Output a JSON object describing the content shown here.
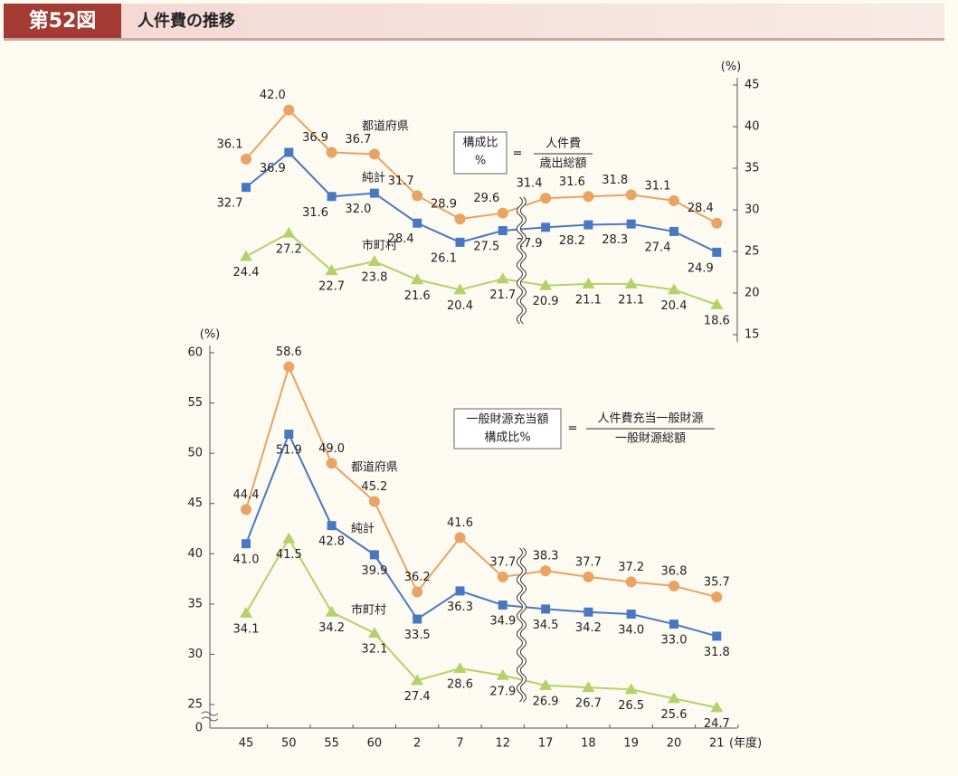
{
  "header": {
    "figure": "第52図",
    "title": "人件費の推移"
  },
  "chart_data": [
    {
      "type": "line",
      "y_unit": "(%)",
      "ylim": [
        15,
        45
      ],
      "yticks": [
        15,
        20,
        25,
        30,
        35,
        40,
        45
      ],
      "formula": {
        "lhs": [
          "構成比",
          "%"
        ],
        "equals": "=",
        "numerator": "人件費",
        "denominator": "歳出総額"
      },
      "series": [
        {
          "name": "都道府県",
          "color": "#e9a362",
          "marker": "circle",
          "values": [
            36.1,
            42.0,
            36.9,
            36.7,
            31.7,
            28.9,
            29.6,
            31.4,
            31.6,
            31.8,
            31.1,
            28.4
          ],
          "value_labels": [
            "36.1",
            "42.0",
            "36.9",
            "36.7",
            "31.7",
            "28.9",
            "29.6",
            "31.4",
            "31.6",
            "31.8",
            "31.1",
            "28.4"
          ]
        },
        {
          "name": "純計",
          "color": "#4a78c0",
          "marker": "square",
          "values": [
            32.7,
            36.9,
            31.6,
            32.0,
            28.4,
            26.1,
            27.5,
            27.9,
            28.2,
            28.3,
            27.4,
            24.9
          ],
          "value_labels": [
            "32.7",
            "36.9",
            "31.6",
            "32.0",
            "28.4",
            "26.1",
            "27.5",
            "27.9",
            "28.2",
            "28.3",
            "27.4",
            "24.9"
          ]
        },
        {
          "name": "市町村",
          "color": "#b4d26a",
          "marker": "triangle",
          "values": [
            24.4,
            27.2,
            22.7,
            23.8,
            21.6,
            20.4,
            21.7,
            20.9,
            21.1,
            21.1,
            20.4,
            18.6
          ],
          "value_labels": [
            "24.4",
            "27.2",
            "22.7",
            "23.8",
            "21.6",
            "20.4",
            "21.7",
            "20.9",
            "21.1",
            "21.1",
            "20.4",
            "18.6"
          ]
        }
      ]
    },
    {
      "type": "line",
      "y_unit": "(%)",
      "x_unit": "(年度)",
      "categories": [
        "45",
        "50",
        "55",
        "60",
        "2",
        "7",
        "12",
        "17",
        "18",
        "19",
        "20",
        "21"
      ],
      "ylim": [
        25,
        60
      ],
      "yticks": [
        0,
        25,
        30,
        35,
        40,
        45,
        50,
        55,
        60
      ],
      "axis_break": true,
      "formula": {
        "lhs": [
          "一般財源充当額",
          "構成比%"
        ],
        "equals": "=",
        "numerator": "人件費充当一般財源",
        "denominator": "一般財源総額"
      },
      "series": [
        {
          "name": "都道府県",
          "color": "#e9a362",
          "marker": "circle",
          "values": [
            44.4,
            58.6,
            49.0,
            45.2,
            36.2,
            41.6,
            37.7,
            38.3,
            37.7,
            37.2,
            36.8,
            35.7
          ],
          "value_labels": [
            "44.4",
            "58.6",
            "49.0",
            "45.2",
            "36.2",
            "41.6",
            "37.7",
            "38.3",
            "37.7",
            "37.2",
            "36.8",
            "35.7"
          ]
        },
        {
          "name": "純計",
          "color": "#4a78c0",
          "marker": "square",
          "values": [
            41.0,
            51.9,
            42.8,
            39.9,
            33.5,
            36.3,
            34.9,
            34.5,
            34.2,
            34.0,
            33.0,
            31.8
          ],
          "value_labels": [
            "41.0",
            "51.9",
            "42.8",
            "39.9",
            "33.5",
            "36.3",
            "34.9",
            "34.5",
            "34.2",
            "34.0",
            "33.0",
            "31.8"
          ]
        },
        {
          "name": "市町村",
          "color": "#b4d26a",
          "marker": "triangle",
          "values": [
            34.1,
            41.5,
            34.2,
            32.1,
            27.4,
            28.6,
            27.9,
            26.9,
            26.7,
            26.5,
            25.6,
            24.7
          ],
          "value_labels": [
            "34.1",
            "41.5",
            "34.2",
            "32.1",
            "27.4",
            "28.6",
            "27.9",
            "26.9",
            "26.7",
            "26.5",
            "25.6",
            "24.7"
          ]
        }
      ]
    }
  ]
}
